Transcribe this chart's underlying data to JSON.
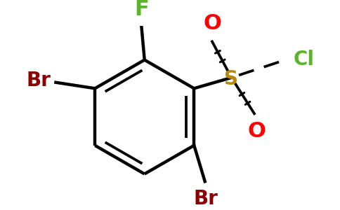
{
  "background_color": "#ffffff",
  "atom_colors": {
    "Br": "#8b0000",
    "F": "#5ab52a",
    "S": "#b8860b",
    "O": "#ff0000",
    "Cl": "#5ab52a",
    "bond": "#000000"
  },
  "atom_labels": {
    "Br": "Br",
    "F": "F",
    "S": "S",
    "O": "O",
    "Cl": "Cl"
  },
  "fontsize_large": 20,
  "fontsize_small": 18,
  "figsize": [
    4.84,
    3.0
  ],
  "dpi": 100
}
